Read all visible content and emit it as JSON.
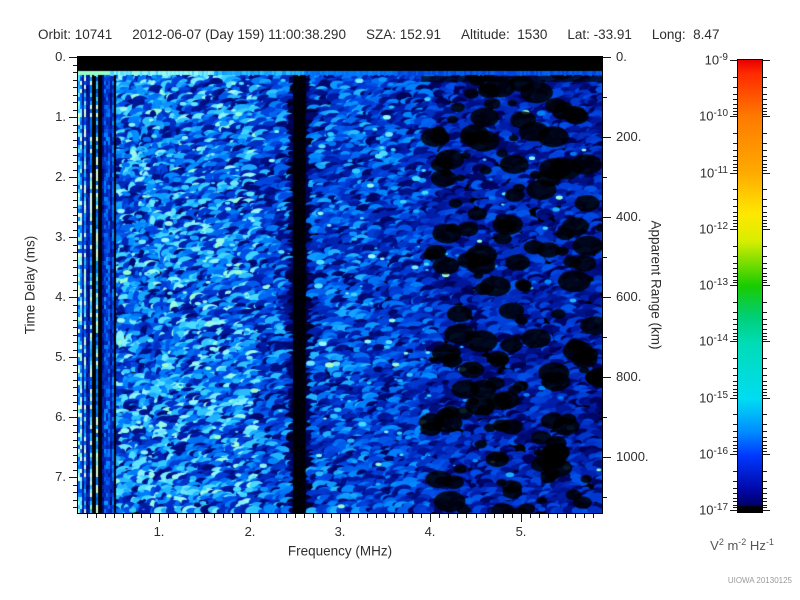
{
  "header": {
    "fields": [
      {
        "text": "Orbit: 10741"
      },
      {
        "text": "2012-06-07 (Day 159) 11:00:38.290"
      },
      {
        "text": "SZA: 152.91"
      },
      {
        "text": "Altitude:  1530"
      },
      {
        "text": "Lat: -33.91"
      },
      {
        "text": "Long:  8.47"
      }
    ]
  },
  "watermark": "UIOWA 20130125",
  "chart_data": {
    "type": "heatmap",
    "title": "Orbit: 10741  2012-06-07 (Day 159) 11:00:38.290  SZA: 152.91  Altitude: 1530  Lat: -33.91  Long: 8.47",
    "x_axis": {
      "label": "Frequency (MHz)",
      "lim": [
        0.1,
        5.9
      ],
      "major_ticks": [
        1,
        2,
        3,
        4,
        5
      ],
      "major_labels": [
        "1.",
        "2.",
        "3.",
        "4.",
        "5."
      ],
      "minor_step": 0.1
    },
    "y_axis_left": {
      "label": "Time Delay (ms)",
      "lim": [
        0,
        7.6
      ],
      "major_ticks": [
        0,
        1,
        2,
        3,
        4,
        5,
        6,
        7
      ],
      "major_labels": [
        "0.",
        "1.",
        "2.",
        "3.",
        "4.",
        "5.",
        "6.",
        "7."
      ],
      "minor_step": 0.125
    },
    "y_axis_right": {
      "label": "Apparent Range (km)",
      "lim": [
        0,
        1140
      ],
      "major_ticks": [
        0,
        200,
        400,
        600,
        800,
        1000
      ],
      "major_labels": [
        "0.",
        "200.",
        "400.",
        "600.",
        "800.",
        "1000."
      ],
      "minor_step": 100
    },
    "colorbar": {
      "scale": "log",
      "base": "10",
      "exponents": [
        -9,
        -10,
        -11,
        -12,
        -13,
        -14,
        -15,
        -16,
        -17
      ],
      "units_parts": [
        [
          "V",
          "2"
        ],
        [
          "m",
          "-2"
        ],
        [
          "Hz",
          "-1"
        ]
      ],
      "gradient_top_to_bottom": [
        {
          "pos": 0,
          "color": "#e80000"
        },
        {
          "pos": 3,
          "color": "#ff2a00"
        },
        {
          "pos": 12.5,
          "color": "#ff7a00"
        },
        {
          "pos": 25,
          "color": "#ffaa00"
        },
        {
          "pos": 34,
          "color": "#ffe800"
        },
        {
          "pos": 40,
          "color": "#d8ee00"
        },
        {
          "pos": 50,
          "color": "#18cc00"
        },
        {
          "pos": 57,
          "color": "#00cf7a"
        },
        {
          "pos": 62.5,
          "color": "#00dcb4"
        },
        {
          "pos": 75,
          "color": "#00dcf2"
        },
        {
          "pos": 82,
          "color": "#0090ff"
        },
        {
          "pos": 87.5,
          "color": "#0038ff"
        },
        {
          "pos": 95,
          "color": "#0008a8"
        },
        {
          "pos": 98.6,
          "color": "#000066"
        },
        {
          "pos": 98.8,
          "color": "#000000"
        },
        {
          "pos": 100,
          "color": "#000000"
        }
      ]
    },
    "features": {
      "description": "Broadband blue/cyan noise spectrogram; intensity highest below ~2 MHz, sparse dark-blue blobs with black gaps above ~4 MHz",
      "transmit_pulse_delay_ms": 0.28,
      "blanked_delay_band_ms": [
        0,
        0.23
      ],
      "absorption_gap_mhz": 2.55,
      "absorption_gap_width_mhz": 0.14,
      "low_freq_interference_band_mhz": [
        0.1,
        0.52
      ],
      "bright_noise_max_mhz": 2.1,
      "sparse_dark_region_min_mhz": 4.0,
      "value_range_exponents": [
        -17,
        -9
      ]
    }
  }
}
